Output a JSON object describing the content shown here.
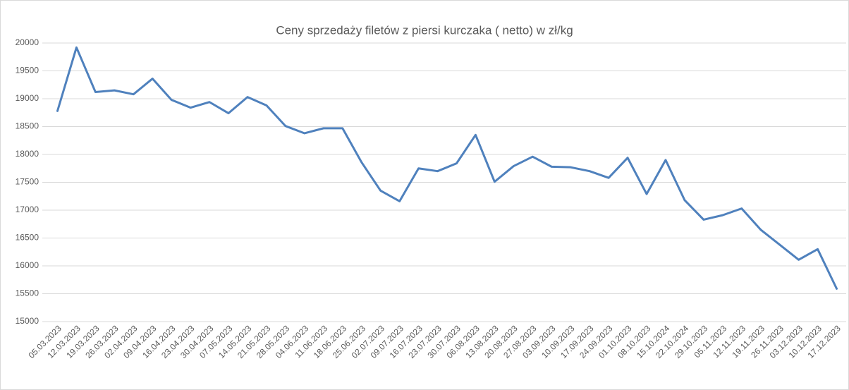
{
  "chart_data": {
    "type": "line",
    "title": "Ceny sprzedaży filetów z piersi kurczaka ( netto) w zł/kg",
    "categories": [
      "05.03.2023",
      "12.03.2023",
      "19.03.2023",
      "26.03.2023",
      "02.04.2023",
      "09.04.2023",
      "16.04.2023",
      "23.04.2023",
      "30.04.2023",
      "07.05.2023",
      "14.05.2023",
      "21.05.2023",
      "28.05.2023",
      "04.06.2023",
      "11.06.2023",
      "18.06.2023",
      "25.06.2023",
      "02.07.2023",
      "09.07.2023",
      "16.07.2023",
      "23.07.2023",
      "30.07.2023",
      "06.08.2023",
      "13.08.2023",
      "20.08.2023",
      "27.08.2023",
      "03.09.2023",
      "10.09.2023",
      "17.09.2023",
      "24.09.2023",
      "01.10.2023",
      "08.10.2023",
      "15.10.2024",
      "22.10.2024",
      "29.10.2023",
      "05.11.2023",
      "12.11.2023",
      "19.11.2023",
      "26.11.2023",
      "03.12.2023",
      "10.12.2023",
      "17.12.2023"
    ],
    "series": [
      {
        "color": "#4f81bd",
        "values": [
          18780,
          19920,
          19120,
          19150,
          19080,
          19360,
          18980,
          18840,
          18940,
          18740,
          19030,
          18880,
          18510,
          18380,
          18470,
          18470,
          17860,
          17350,
          17160,
          17750,
          17700,
          17840,
          18350,
          17510,
          17790,
          17960,
          17780,
          17770,
          17700,
          17580,
          17940,
          17290,
          17900,
          17180,
          16830,
          16910,
          17030,
          16650,
          16380,
          16110,
          16300,
          15590
        ]
      }
    ],
    "ylim": [
      15000,
      20000
    ],
    "yticks": [
      15000,
      15500,
      16000,
      16500,
      17000,
      17500,
      18000,
      18500,
      19000,
      19500,
      20000
    ],
    "grid": true
  }
}
